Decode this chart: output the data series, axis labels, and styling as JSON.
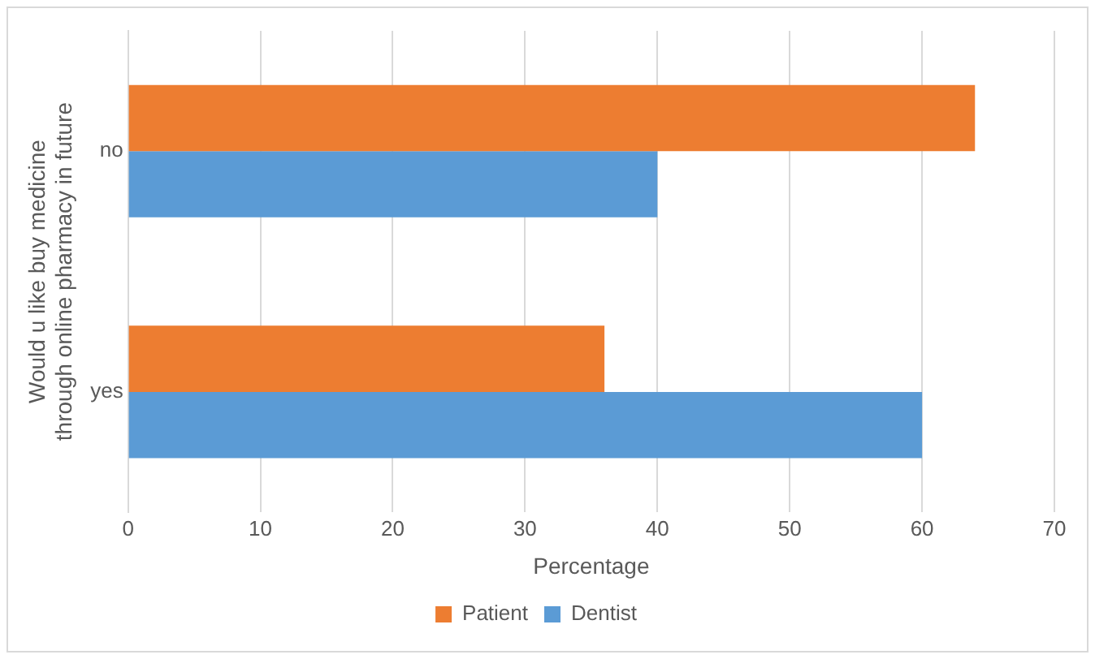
{
  "chart_data": {
    "type": "bar",
    "orientation": "horizontal",
    "xlabel": "Percentage",
    "ylabel": "Would u like buy medicine through online pharmacy in future",
    "categories": [
      "no",
      "yes"
    ],
    "series": [
      {
        "name": "Patient",
        "color": "#ed7d31",
        "values": [
          64,
          36
        ]
      },
      {
        "name": "Dentist",
        "color": "#5b9bd5",
        "values": [
          40,
          60
        ]
      }
    ],
    "xlim": [
      0,
      70
    ],
    "xticks": [
      0,
      10,
      20,
      30,
      40,
      50,
      60,
      70
    ],
    "grid": "x",
    "legend": "bottom"
  }
}
